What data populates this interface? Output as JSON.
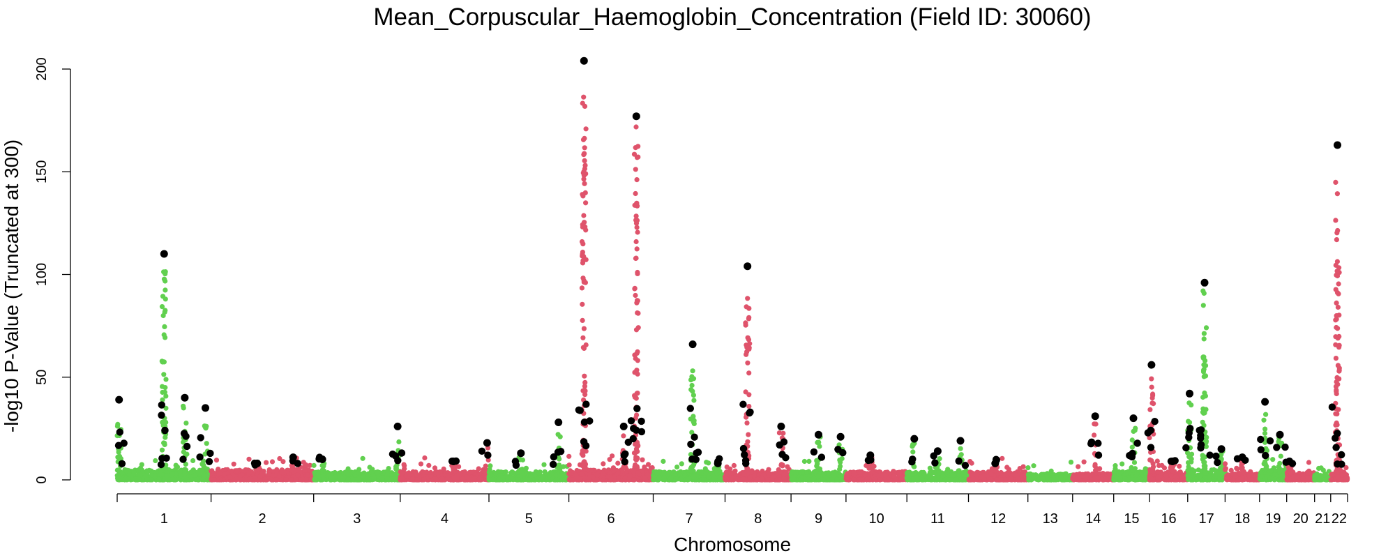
{
  "chart_data": {
    "type": "scatter",
    "subtype": "manhattan",
    "title": "Mean_Corpuscular_Haemoglobin_Concentration (Field ID: 30060)",
    "xlabel": "Chromosome",
    "ylabel": "-log10 P-Value (Truncated at 300)",
    "ylim": [
      0,
      210
    ],
    "yticks": [
      0,
      50,
      100,
      150,
      200
    ],
    "grid": false,
    "colors": {
      "odd": "#61d04f",
      "even": "#df536b",
      "lead": "#000000"
    },
    "chromosomes": [
      {
        "label": "1",
        "len": 12.8,
        "base": 5,
        "peaks": [
          {
            "pos": 0.02,
            "max": 33,
            "lead": 39
          },
          {
            "pos": 0.5,
            "max": 107,
            "lead": 110
          },
          {
            "pos": 0.72,
            "max": 38,
            "lead": 40
          },
          {
            "pos": 0.94,
            "max": 30,
            "lead": 35
          }
        ]
      },
      {
        "label": "2",
        "len": 14.0,
        "base": 5,
        "peaks": [
          {
            "pos": 0.45,
            "max": 8,
            "lead": 8
          },
          {
            "pos": 0.8,
            "max": 10,
            "lead": 11
          }
        ]
      },
      {
        "label": "3",
        "len": 11.8,
        "base": 4,
        "peaks": [
          {
            "pos": 0.1,
            "max": 9,
            "lead": 10
          },
          {
            "pos": 0.97,
            "max": 24,
            "lead": 26
          }
        ]
      },
      {
        "label": "4",
        "len": 12.1,
        "base": 4,
        "peaks": [
          {
            "pos": 0.6,
            "max": 9,
            "lead": 9
          },
          {
            "pos": 0.98,
            "max": 16,
            "lead": 18
          }
        ]
      },
      {
        "label": "5",
        "len": 10.9,
        "base": 4,
        "peaks": [
          {
            "pos": 0.4,
            "max": 12,
            "lead": 13
          },
          {
            "pos": 0.87,
            "max": 27,
            "lead": 28
          }
        ]
      },
      {
        "label": "6",
        "len": 11.5,
        "base": 5,
        "peaks": [
          {
            "pos": 0.18,
            "max": 196,
            "lead": 204
          },
          {
            "pos": 0.8,
            "max": 174,
            "lead": 177
          },
          {
            "pos": 0.65,
            "max": 22,
            "lead": 26
          }
        ]
      },
      {
        "label": "7",
        "len": 9.8,
        "base": 4,
        "peaks": [
          {
            "pos": 0.55,
            "max": 63,
            "lead": 66
          },
          {
            "pos": 0.9,
            "max": 7,
            "lead": 8
          }
        ]
      },
      {
        "label": "8",
        "len": 9.0,
        "base": 4,
        "peaks": [
          {
            "pos": 0.34,
            "max": 92,
            "lead": 104
          },
          {
            "pos": 0.85,
            "max": 24,
            "lead": 26
          }
        ]
      },
      {
        "label": "9",
        "len": 7.5,
        "base": 4,
        "peaks": [
          {
            "pos": 0.5,
            "max": 21,
            "lead": 22
          },
          {
            "pos": 0.9,
            "max": 19,
            "lead": 21
          }
        ]
      },
      {
        "label": "10",
        "len": 8.3,
        "base": 4,
        "peaks": [
          {
            "pos": 0.4,
            "max": 11,
            "lead": 12
          }
        ]
      },
      {
        "label": "11",
        "len": 8.4,
        "base": 4,
        "peaks": [
          {
            "pos": 0.12,
            "max": 18,
            "lead": 20
          },
          {
            "pos": 0.5,
            "max": 12,
            "lead": 14
          },
          {
            "pos": 0.87,
            "max": 17,
            "lead": 19
          }
        ]
      },
      {
        "label": "12",
        "len": 8.1,
        "base": 4,
        "peaks": [
          {
            "pos": 0.45,
            "max": 7,
            "lead": 8
          }
        ]
      },
      {
        "label": "13",
        "len": 6.1,
        "base": 3,
        "peaks": []
      },
      {
        "label": "14",
        "len": 5.6,
        "base": 3,
        "peaks": [
          {
            "pos": 0.55,
            "max": 28,
            "lead": 31
          }
        ]
      },
      {
        "label": "15",
        "len": 4.9,
        "base": 4,
        "peaks": [
          {
            "pos": 0.55,
            "max": 28,
            "lead": 30
          }
        ]
      },
      {
        "label": "16",
        "len": 5.2,
        "base": 4,
        "peaks": [
          {
            "pos": 0.05,
            "max": 52,
            "lead": 56
          },
          {
            "pos": 0.6,
            "max": 8,
            "lead": 9
          }
        ]
      },
      {
        "label": "17",
        "len": 5.1,
        "base": 5,
        "peaks": [
          {
            "pos": 0.05,
            "max": 40,
            "lead": 42
          },
          {
            "pos": 0.45,
            "max": 94,
            "lead": 96
          },
          {
            "pos": 0.9,
            "max": 14,
            "lead": 15
          }
        ]
      },
      {
        "label": "18",
        "len": 4.7,
        "base": 3,
        "peaks": [
          {
            "pos": 0.5,
            "max": 10,
            "lead": 11
          }
        ]
      },
      {
        "label": "19",
        "len": 3.7,
        "base": 5,
        "peaks": [
          {
            "pos": 0.2,
            "max": 36,
            "lead": 38
          },
          {
            "pos": 0.75,
            "max": 21,
            "lead": 22
          }
        ]
      },
      {
        "label": "20",
        "len": 3.8,
        "base": 4,
        "peaks": [
          {
            "pos": 0.1,
            "max": 8,
            "lead": 9
          }
        ]
      },
      {
        "label": "21",
        "len": 2.2,
        "base": 3,
        "peaks": []
      },
      {
        "label": "22",
        "len": 2.3,
        "base": 5,
        "peaks": [
          {
            "pos": 0.4,
            "max": 150,
            "lead": 163
          }
        ]
      }
    ]
  }
}
